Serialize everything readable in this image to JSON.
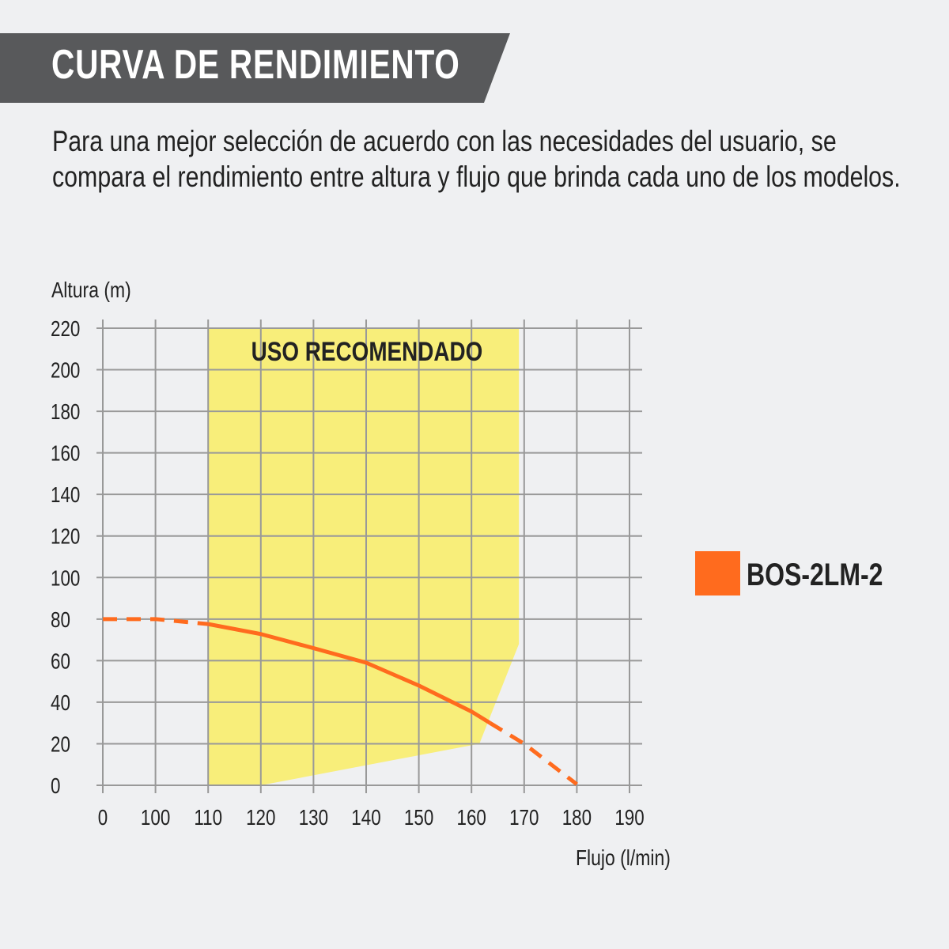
{
  "header": {
    "title": "CURVA DE RENDIMIENTO",
    "band_color": "#58595b"
  },
  "description": "Para una mejor selección de acuerdo con las necesidades del usuario, se compara el rendimiento entre altura y flujo que brinda cada uno de los modelos.",
  "chart_data": {
    "type": "line",
    "ylabel": "Altura (m)",
    "xlabel": "Flujo (l/min)",
    "x_ticks": [
      "0",
      "100",
      "110",
      "120",
      "130",
      "140",
      "150",
      "160",
      "170",
      "180",
      "190"
    ],
    "y_ticks": [
      "0",
      "20",
      "40",
      "60",
      "80",
      "100",
      "120",
      "140",
      "160",
      "180",
      "200",
      "220"
    ],
    "ylim": [
      0,
      220
    ],
    "xlim": [
      0,
      190
    ],
    "grid": true,
    "legend_placement": "right",
    "region": {
      "label": "USO RECOMENDADO",
      "color": "#f8ee7a",
      "polygon": [
        [
          110,
          220
        ],
        [
          169,
          220
        ],
        [
          169,
          68
        ],
        [
          161.5,
          20
        ],
        [
          120,
          0
        ],
        [
          110,
          0
        ]
      ]
    },
    "series": [
      {
        "name": "BOS-2LM-2",
        "color": "#ff6b1e",
        "points": [
          [
            0,
            80
          ],
          [
            100,
            80
          ],
          [
            110,
            77.6
          ],
          [
            120,
            72.8
          ],
          [
            130,
            66
          ],
          [
            140,
            59
          ],
          [
            150,
            48
          ],
          [
            160,
            35.5
          ],
          [
            163.5,
            30
          ],
          [
            170,
            20
          ],
          [
            180,
            0.5
          ]
        ],
        "solid_range": [
          110,
          163.5
        ]
      }
    ]
  }
}
